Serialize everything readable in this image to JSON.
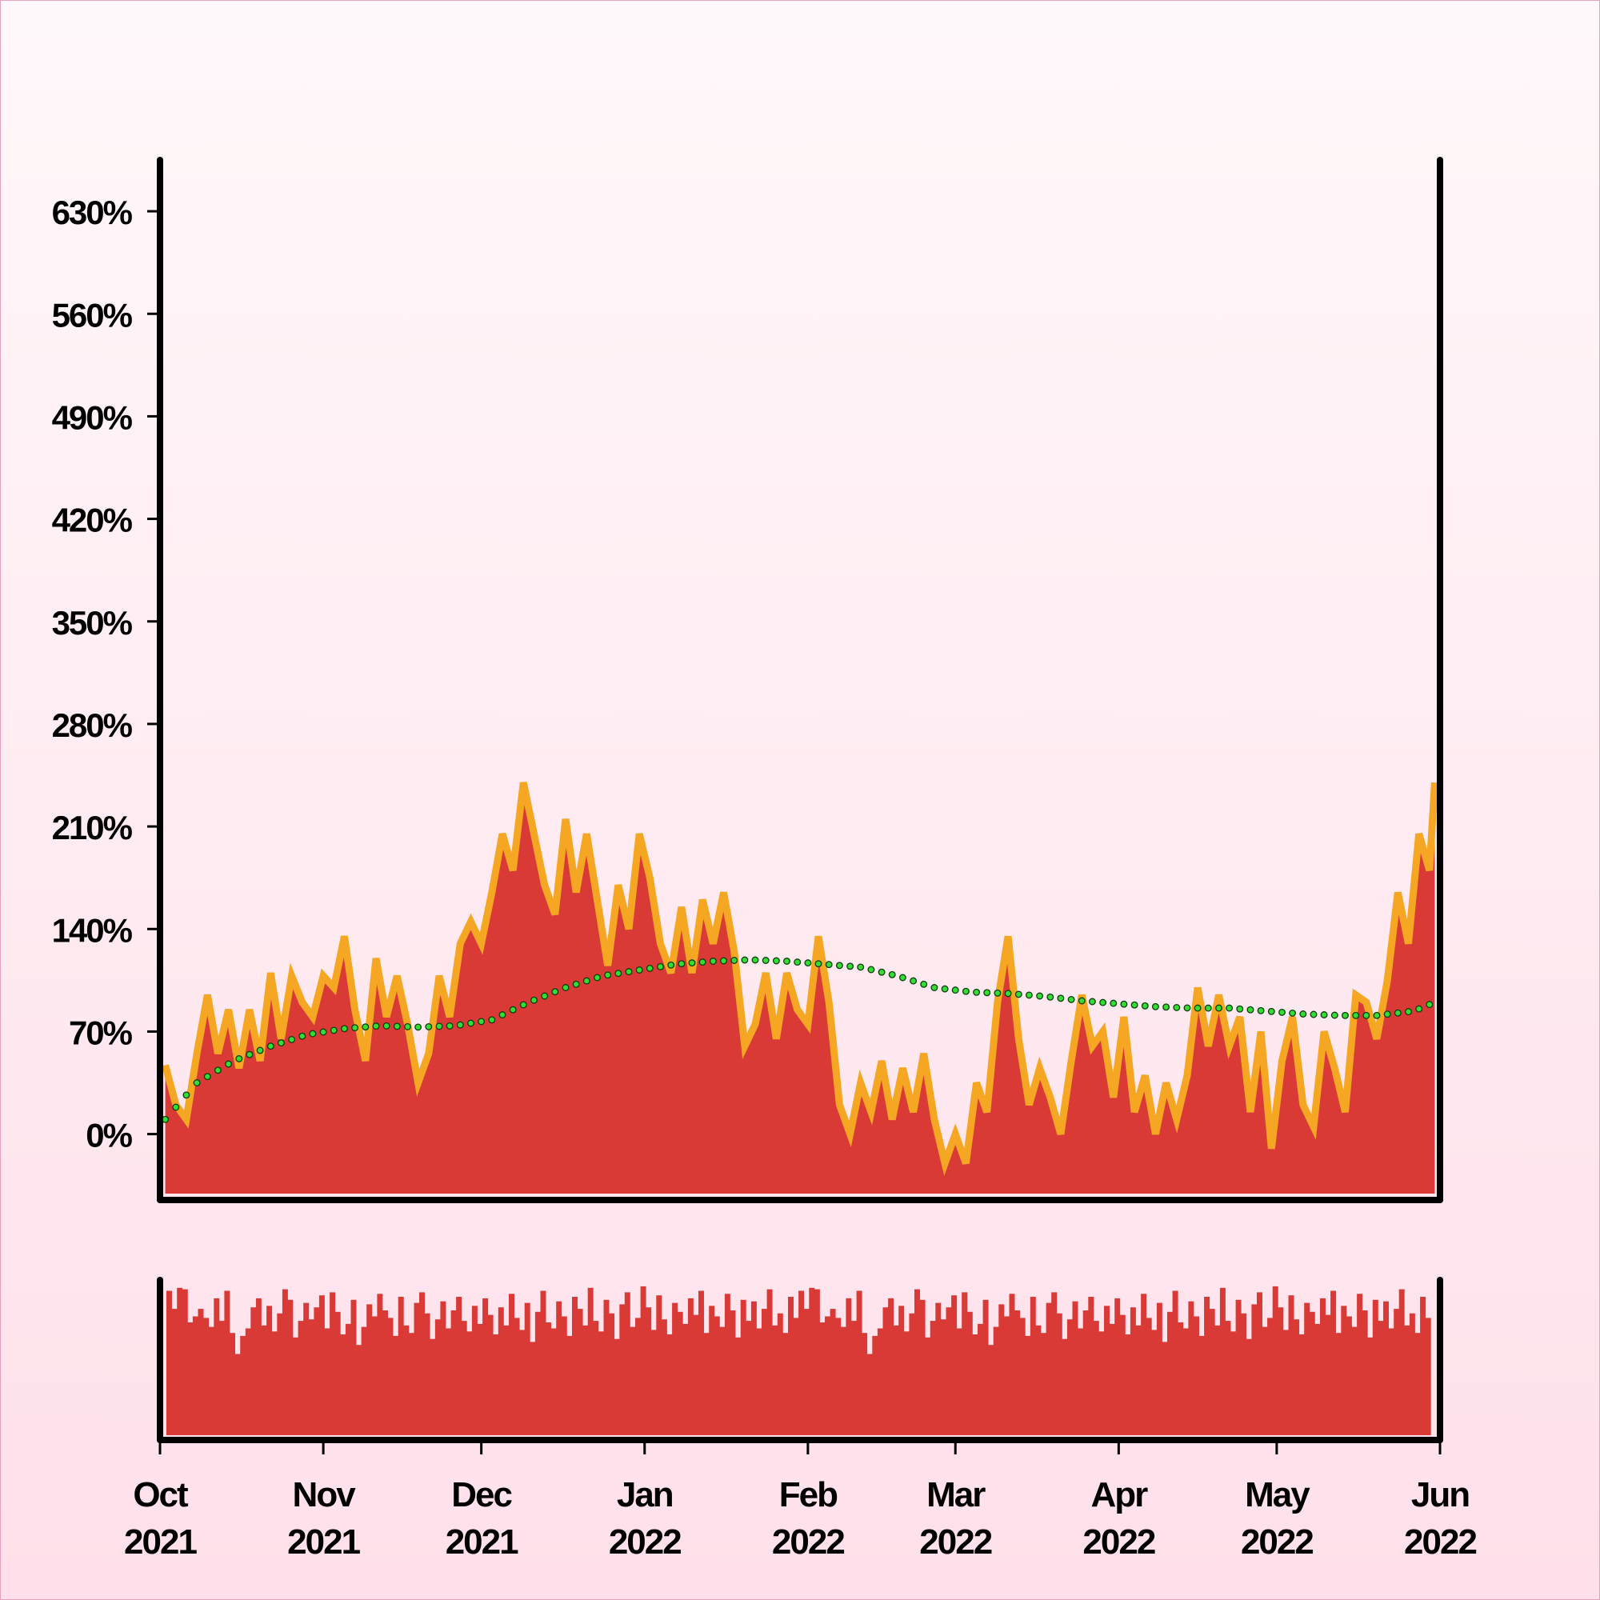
{
  "chart_data": {
    "type": "area",
    "title": "",
    "xlabel": "",
    "ylabel": "",
    "x_range": [
      "2021-10-01",
      "2022-06-01"
    ],
    "ylim": [
      -45,
      665
    ],
    "y_ticks": [
      0,
      70,
      140,
      210,
      280,
      350,
      420,
      490,
      560,
      630
    ],
    "y_tick_labels": [
      "0%",
      "70%",
      "140%",
      "210%",
      "280%",
      "350%",
      "420%",
      "490%",
      "560%",
      "630%"
    ],
    "x_ticks": [
      {
        "date": "2021-10-01",
        "month": "Oct",
        "year": "2021"
      },
      {
        "date": "2021-11-01",
        "month": "Nov",
        "year": "2021"
      },
      {
        "date": "2021-12-01",
        "month": "Dec",
        "year": "2021"
      },
      {
        "date": "2022-01-01",
        "month": "Jan",
        "year": "2022"
      },
      {
        "date": "2022-02-01",
        "month": "Feb",
        "year": "2022"
      },
      {
        "date": "2022-03-01",
        "month": "Mar",
        "year": "2022"
      },
      {
        "date": "2022-04-01",
        "month": "Apr",
        "year": "2022"
      },
      {
        "date": "2022-05-01",
        "month": "May",
        "year": "2022"
      },
      {
        "date": "2022-06-01",
        "month": "Jun",
        "year": "2022"
      }
    ],
    "grid": false,
    "colors": {
      "area": "#d93a36",
      "line": "#f5a623",
      "trend": "#33dd33",
      "volume": "#d93a36",
      "axis": "#000000"
    },
    "series": [
      {
        "role": "value",
        "points": [
          [
            "2021-10-02",
            47
          ],
          [
            "2021-10-04",
            20
          ],
          [
            "2021-10-06",
            10
          ],
          [
            "2021-10-08",
            55
          ],
          [
            "2021-10-10",
            95
          ],
          [
            "2021-10-12",
            55
          ],
          [
            "2021-10-14",
            85
          ],
          [
            "2021-10-16",
            45
          ],
          [
            "2021-10-18",
            85
          ],
          [
            "2021-10-20",
            50
          ],
          [
            "2021-10-22",
            110
          ],
          [
            "2021-10-24",
            65
          ],
          [
            "2021-10-26",
            108
          ],
          [
            "2021-10-28",
            90
          ],
          [
            "2021-10-30",
            80
          ],
          [
            "2021-11-01",
            108
          ],
          [
            "2021-11-03",
            100
          ],
          [
            "2021-11-05",
            135
          ],
          [
            "2021-11-07",
            85
          ],
          [
            "2021-11-09",
            50
          ],
          [
            "2021-11-11",
            120
          ],
          [
            "2021-11-13",
            80
          ],
          [
            "2021-11-15",
            108
          ],
          [
            "2021-11-17",
            75
          ],
          [
            "2021-11-19",
            35
          ],
          [
            "2021-11-21",
            55
          ],
          [
            "2021-11-23",
            108
          ],
          [
            "2021-11-25",
            80
          ],
          [
            "2021-11-27",
            130
          ],
          [
            "2021-11-29",
            145
          ],
          [
            "2021-12-01",
            130
          ],
          [
            "2021-12-03",
            165
          ],
          [
            "2021-12-05",
            205
          ],
          [
            "2021-12-07",
            180
          ],
          [
            "2021-12-09",
            240
          ],
          [
            "2021-12-11",
            205
          ],
          [
            "2021-12-13",
            170
          ],
          [
            "2021-12-15",
            150
          ],
          [
            "2021-12-17",
            215
          ],
          [
            "2021-12-19",
            165
          ],
          [
            "2021-12-21",
            205
          ],
          [
            "2021-12-23",
            160
          ],
          [
            "2021-12-25",
            115
          ],
          [
            "2021-12-27",
            170
          ],
          [
            "2021-12-29",
            140
          ],
          [
            "2021-12-31",
            205
          ],
          [
            "2022-01-02",
            175
          ],
          [
            "2022-01-04",
            130
          ],
          [
            "2022-01-06",
            110
          ],
          [
            "2022-01-08",
            155
          ],
          [
            "2022-01-10",
            110
          ],
          [
            "2022-01-12",
            160
          ],
          [
            "2022-01-14",
            130
          ],
          [
            "2022-01-16",
            165
          ],
          [
            "2022-01-18",
            125
          ],
          [
            "2022-01-20",
            60
          ],
          [
            "2022-01-22",
            75
          ],
          [
            "2022-01-24",
            110
          ],
          [
            "2022-01-26",
            65
          ],
          [
            "2022-01-28",
            110
          ],
          [
            "2022-01-30",
            85
          ],
          [
            "2022-02-01",
            75
          ],
          [
            "2022-02-03",
            135
          ],
          [
            "2022-02-05",
            90
          ],
          [
            "2022-02-07",
            20
          ],
          [
            "2022-02-09",
            0
          ],
          [
            "2022-02-11",
            35
          ],
          [
            "2022-02-13",
            15
          ],
          [
            "2022-02-15",
            50
          ],
          [
            "2022-02-17",
            10
          ],
          [
            "2022-02-19",
            45
          ],
          [
            "2022-02-21",
            15
          ],
          [
            "2022-02-23",
            55
          ],
          [
            "2022-02-25",
            10
          ],
          [
            "2022-02-27",
            -20
          ],
          [
            "2022-03-01",
            0
          ],
          [
            "2022-03-03",
            -20
          ],
          [
            "2022-03-05",
            35
          ],
          [
            "2022-03-07",
            15
          ],
          [
            "2022-03-09",
            90
          ],
          [
            "2022-03-11",
            135
          ],
          [
            "2022-03-13",
            65
          ],
          [
            "2022-03-15",
            20
          ],
          [
            "2022-03-17",
            45
          ],
          [
            "2022-03-19",
            25
          ],
          [
            "2022-03-21",
            0
          ],
          [
            "2022-03-23",
            50
          ],
          [
            "2022-03-25",
            95
          ],
          [
            "2022-03-27",
            60
          ],
          [
            "2022-03-29",
            70
          ],
          [
            "2022-03-31",
            25
          ],
          [
            "2022-04-02",
            80
          ],
          [
            "2022-04-04",
            15
          ],
          [
            "2022-04-06",
            40
          ],
          [
            "2022-04-08",
            0
          ],
          [
            "2022-04-10",
            35
          ],
          [
            "2022-04-12",
            10
          ],
          [
            "2022-04-14",
            40
          ],
          [
            "2022-04-16",
            100
          ],
          [
            "2022-04-18",
            60
          ],
          [
            "2022-04-20",
            95
          ],
          [
            "2022-04-22",
            60
          ],
          [
            "2022-04-24",
            80
          ],
          [
            "2022-04-26",
            15
          ],
          [
            "2022-04-28",
            70
          ],
          [
            "2022-04-30",
            -10
          ],
          [
            "2022-05-02",
            50
          ],
          [
            "2022-05-04",
            80
          ],
          [
            "2022-05-06",
            20
          ],
          [
            "2022-05-08",
            5
          ],
          [
            "2022-05-10",
            70
          ],
          [
            "2022-05-12",
            45
          ],
          [
            "2022-05-14",
            15
          ],
          [
            "2022-05-16",
            95
          ],
          [
            "2022-05-18",
            90
          ],
          [
            "2022-05-20",
            65
          ],
          [
            "2022-05-22",
            105
          ],
          [
            "2022-05-24",
            165
          ],
          [
            "2022-05-26",
            130
          ],
          [
            "2022-05-28",
            205
          ],
          [
            "2022-05-30",
            180
          ],
          [
            "2022-05-31",
            240
          ]
        ]
      },
      {
        "role": "trend",
        "points": [
          [
            "2021-10-02",
            10
          ],
          [
            "2021-10-08",
            35
          ],
          [
            "2021-10-15",
            50
          ],
          [
            "2021-10-22",
            60
          ],
          [
            "2021-10-29",
            68
          ],
          [
            "2021-11-05",
            72
          ],
          [
            "2021-11-12",
            74
          ],
          [
            "2021-11-19",
            73
          ],
          [
            "2021-11-26",
            74
          ],
          [
            "2021-12-03",
            78
          ],
          [
            "2021-12-10",
            90
          ],
          [
            "2021-12-17",
            100
          ],
          [
            "2021-12-24",
            108
          ],
          [
            "2021-12-31",
            112
          ],
          [
            "2022-01-07",
            116
          ],
          [
            "2022-01-14",
            118
          ],
          [
            "2022-01-21",
            119
          ],
          [
            "2022-01-28",
            118
          ],
          [
            "2022-02-04",
            116
          ],
          [
            "2022-02-11",
            114
          ],
          [
            "2022-02-18",
            108
          ],
          [
            "2022-02-25",
            100
          ],
          [
            "2022-03-04",
            97
          ],
          [
            "2022-03-11",
            96
          ],
          [
            "2022-03-18",
            94
          ],
          [
            "2022-03-25",
            91
          ],
          [
            "2022-04-01",
            89
          ],
          [
            "2022-04-08",
            87
          ],
          [
            "2022-04-15",
            86
          ],
          [
            "2022-04-22",
            86
          ],
          [
            "2022-04-29",
            84
          ],
          [
            "2022-05-06",
            82
          ],
          [
            "2022-05-13",
            81
          ],
          [
            "2022-05-20",
            81
          ],
          [
            "2022-05-27",
            84
          ],
          [
            "2022-05-31",
            90
          ]
        ]
      }
    ],
    "volume_values": [
      96,
      84,
      98,
      97,
      75,
      79,
      84,
      78,
      72,
      91,
      76,
      96,
      68,
      54,
      66,
      71,
      85,
      91,
      73,
      86,
      69,
      81,
      97,
      90,
      65,
      76,
      88,
      77,
      85,
      93,
      71,
      95,
      82,
      67,
      74,
      90,
      60,
      72,
      87,
      79,
      94,
      83,
      78,
      66,
      92,
      73,
      68,
      88,
      95,
      81,
      64,
      77,
      89,
      71,
      83,
      92,
      76,
      69,
      86,
      74,
      91,
      80,
      67,
      85,
      73,
      94,
      78,
      70,
      88,
      62,
      82,
      96,
      75,
      71,
      89,
      79,
      66,
      92,
      84,
      73,
      98,
      76,
      69,
      90,
      81,
      64,
      87,
      95,
      72,
      78,
      99,
      85,
      70,
      93,
      77,
      67,
      88,
      82,
      74,
      91,
      80,
      96,
      68,
      86,
      79,
      72,
      94,
      83,
      65,
      90,
      76,
      89,
      71,
      84,
      97,
      73,
      81,
      68,
      92,
      78
    ]
  }
}
